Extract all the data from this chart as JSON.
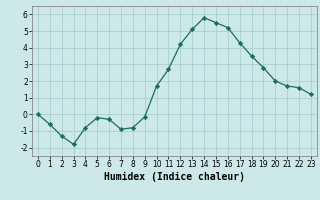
{
  "x": [
    0,
    1,
    2,
    3,
    4,
    5,
    6,
    7,
    8,
    9,
    10,
    11,
    12,
    13,
    14,
    15,
    16,
    17,
    18,
    19,
    20,
    21,
    22,
    23
  ],
  "y": [
    0.0,
    -0.6,
    -1.3,
    -1.8,
    -0.8,
    -0.2,
    -0.3,
    -0.9,
    -0.8,
    -0.15,
    1.7,
    2.7,
    4.2,
    5.1,
    5.8,
    5.5,
    5.2,
    4.3,
    3.5,
    2.8,
    2.0,
    1.7,
    1.6,
    1.2
  ],
  "line_color": "#1a6e5c",
  "marker": "D",
  "marker_size": 2.2,
  "bg_color": "#cce8e8",
  "grid_color": "#aacece",
  "xlabel": "Humidex (Indice chaleur)",
  "xlim": [
    -0.5,
    23.5
  ],
  "ylim": [
    -2.5,
    6.5
  ],
  "yticks": [
    -2,
    -1,
    0,
    1,
    2,
    3,
    4,
    5,
    6
  ],
  "xticks": [
    0,
    1,
    2,
    3,
    4,
    5,
    6,
    7,
    8,
    9,
    10,
    11,
    12,
    13,
    14,
    15,
    16,
    17,
    18,
    19,
    20,
    21,
    22,
    23
  ],
  "tick_labelsize": 5.5,
  "xlabel_fontsize": 7.0,
  "linewidth": 0.9
}
